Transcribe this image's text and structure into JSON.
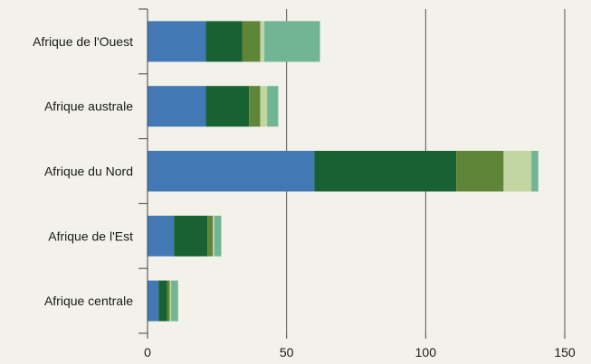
{
  "chart_data": {
    "type": "bar",
    "orientation": "horizontal",
    "stacked": true,
    "categories": [
      "Afrique de l'Ouest",
      "Afrique australe",
      "Afrique du Nord",
      "Afrique de l'Est",
      "Afrique centrale"
    ],
    "series": [
      {
        "color": "#4279b5",
        "values": [
          21,
          21,
          60,
          9.5,
          4
        ]
      },
      {
        "color": "#176132",
        "values": [
          13,
          15.5,
          51,
          12,
          3
        ]
      },
      {
        "color": "#5f8638",
        "values": [
          6.5,
          4,
          17,
          2,
          1
        ]
      },
      {
        "color": "#c1d6a3",
        "values": [
          1.5,
          2.5,
          10,
          0.5,
          0.5
        ]
      },
      {
        "color": "#72b595",
        "values": [
          20,
          4,
          2.5,
          2.5,
          2.5
        ]
      }
    ],
    "xlim": [
      0,
      150
    ],
    "xticks": [
      0,
      50,
      100,
      150
    ],
    "grid": "vertical"
  }
}
